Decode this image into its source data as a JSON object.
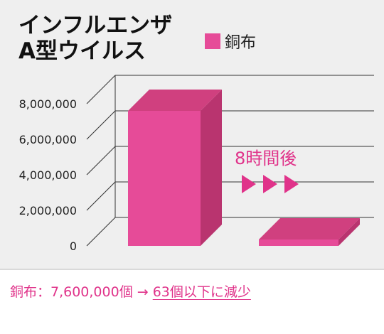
{
  "chart_data": {
    "type": "bar",
    "title_lines": [
      "インフルエンザ",
      "A型ウイルス"
    ],
    "categories": [
      "",
      ""
    ],
    "series": [
      {
        "name": "銅布",
        "values": [
          7600000,
          63
        ]
      }
    ],
    "ylim": [
      0,
      8000000
    ],
    "yticks": [
      {
        "value": 0,
        "label": "0"
      },
      {
        "value": 2000000,
        "label": "2,000,000"
      },
      {
        "value": 4000000,
        "label": "4,000,000"
      },
      {
        "value": 6000000,
        "label": "6,000,000"
      },
      {
        "value": 8000000,
        "label": "8,000,000"
      }
    ],
    "grid": true,
    "legend_position": "top-right",
    "annotation": {
      "text": "8時間後",
      "arrows": 3
    }
  },
  "colors": {
    "bar_front": "#e64b98",
    "bar_side": "#b9346f",
    "bar_top": "#d0407f",
    "accent_text": "#e0338a"
  },
  "caption": {
    "prefix": "銅布：7,600,000個 → ",
    "underlined": "63個以下に減少"
  }
}
